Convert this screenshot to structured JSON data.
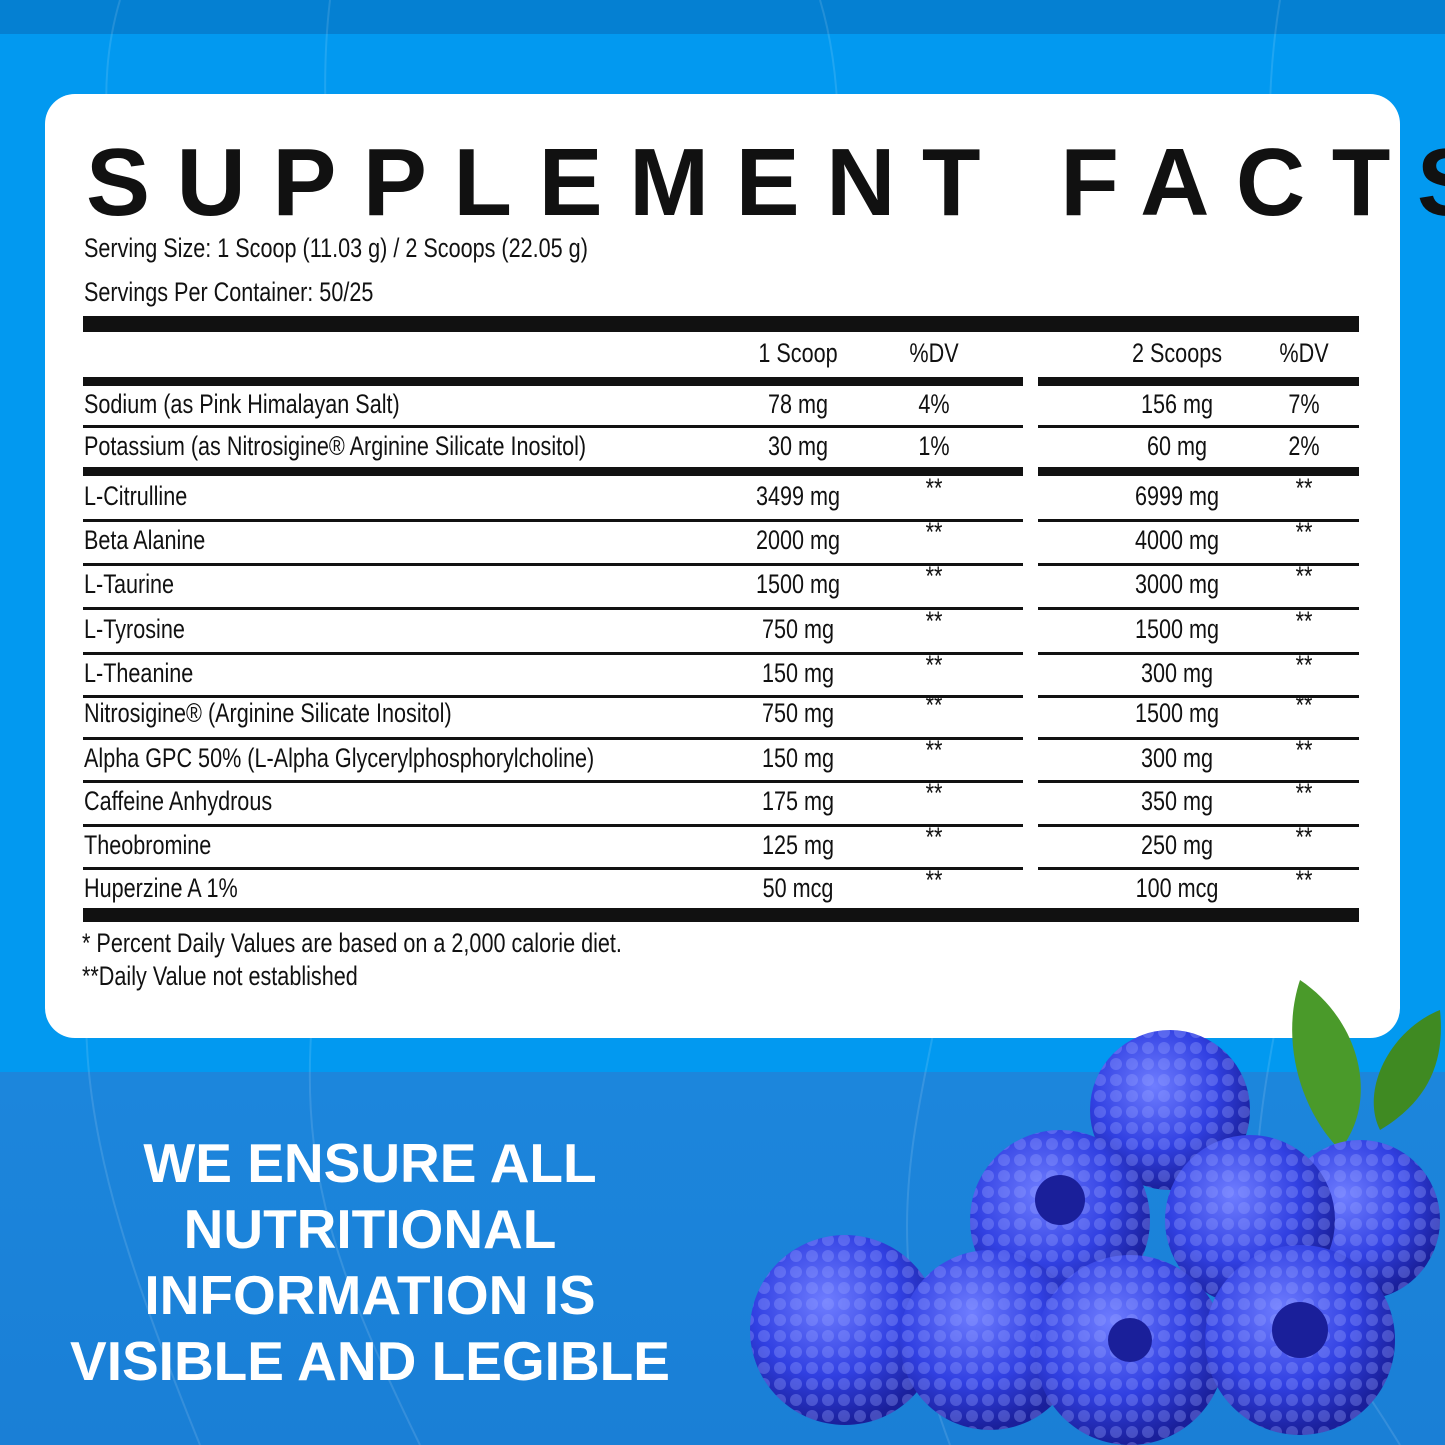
{
  "title": "SUPPLEMENT FACTS",
  "serving_size": "Serving Size: 1 Scoop (11.03 g) / 2 Scoops (22.05 g)",
  "servings_per_container": "Servings Per Container: 50/25",
  "headers": {
    "one_scoop": "1 Scoop",
    "dv1": "%DV",
    "two_scoops": "2 Scoops",
    "dv2": "%DV"
  },
  "rows": [
    {
      "name": "Sodium (as Pink Himalayan Salt)",
      "one": "78 mg",
      "dv1": "4%",
      "two": "156 mg",
      "dv2": "7%"
    },
    {
      "name": "Potassium (as Nitrosigine® Arginine Silicate Inositol)",
      "one": "30 mg",
      "dv1": "1%",
      "two": "60 mg",
      "dv2": "2%"
    },
    {
      "name": "L-Citrulline",
      "one": "3499 mg",
      "dv1": "**",
      "two": "6999 mg",
      "dv2": "**"
    },
    {
      "name": "Beta Alanine",
      "one": "2000 mg",
      "dv1": "**",
      "two": "4000 mg",
      "dv2": "**"
    },
    {
      "name": "L-Taurine",
      "one": "1500 mg",
      "dv1": "**",
      "two": "3000 mg",
      "dv2": "**"
    },
    {
      "name": "L-Tyrosine",
      "one": "750 mg",
      "dv1": "**",
      "two": "1500 mg",
      "dv2": "**"
    },
    {
      "name": "L-Theanine",
      "one": "150 mg",
      "dv1": "**",
      "two": "300 mg",
      "dv2": "**"
    },
    {
      "name": "Nitrosigine® (Arginine Silicate Inositol)",
      "one": "750 mg",
      "dv1": "**",
      "two": "1500 mg",
      "dv2": "**"
    },
    {
      "name": "Alpha GPC 50% (L-Alpha Glycerylphosphorylcholine)",
      "one": "150 mg",
      "dv1": "**",
      "two": "300 mg",
      "dv2": "**"
    },
    {
      "name": "Caffeine Anhydrous",
      "one": "175 mg",
      "dv1": "**",
      "two": "350 mg",
      "dv2": "**"
    },
    {
      "name": "Theobromine",
      "one": "125 mg",
      "dv1": "**",
      "two": "250 mg",
      "dv2": "**"
    },
    {
      "name": "Huperzine A 1%",
      "one": "50 mcg",
      "dv1": "**",
      "two": "100 mcg",
      "dv2": "**"
    }
  ],
  "footnotes": [
    "* Percent Daily Values are based on a 2,000 calorie diet.",
    "**Daily Value not established"
  ],
  "slogan": [
    "WE ENSURE ALL",
    "NUTRITIONAL",
    "INFORMATION IS",
    "VISIBLE AND LEGIBLE"
  ],
  "colors": {
    "background": "#0299f0",
    "top_band": "#0580d2",
    "bottom_band": "#1a7fd6",
    "berry": "#2f3fe0",
    "leaf": "#4a9a2a"
  }
}
